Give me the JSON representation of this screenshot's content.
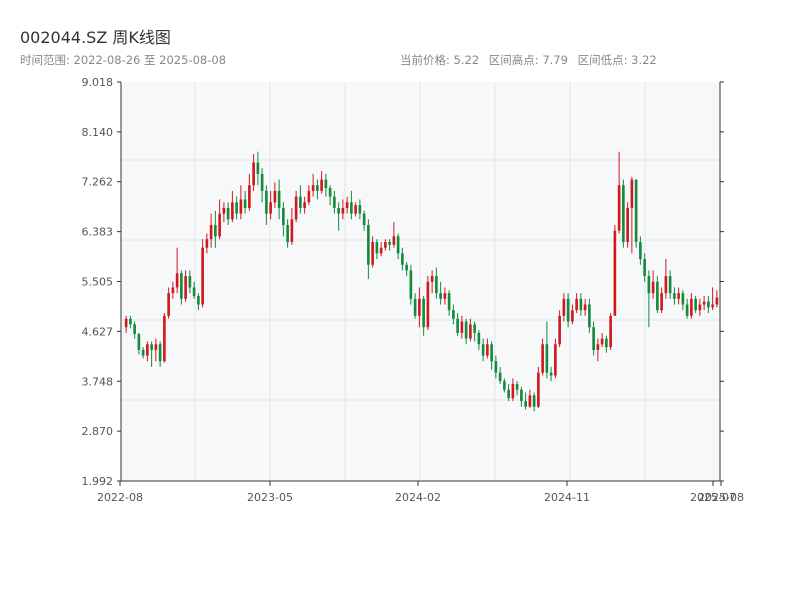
{
  "header": {
    "title": "002044.SZ 周K线图",
    "subtitle": "时间范围: 2022-08-26 至 2025-08-08",
    "current_price": "当前价格: 5.22",
    "range_high": "区间高点: 7.79",
    "range_low": "区间低点: 3.22"
  },
  "colors": {
    "up": "#d0191f",
    "down": "#138a3c",
    "plot_bg": "#f7f8fa",
    "grid": "#e3e5ea",
    "axis": "#333333"
  },
  "chart_data": {
    "type": "candlestick",
    "title": "002044.SZ 周K线图",
    "ylim": [
      1.992,
      9.018
    ],
    "y_ticks": [
      "9.018",
      "8.140",
      "7.262",
      "6.383",
      "5.505",
      "4.627",
      "3.748",
      "2.870",
      "1.992"
    ],
    "x_ticks": [
      "2022-08",
      "2023-05",
      "2024-02",
      "2024-11",
      "2025-07",
      "2025-08"
    ],
    "grid": true,
    "series": [
      {
        "values": [
          [
            4.7,
            4.85,
            4.6,
            4.9
          ],
          [
            4.85,
            4.75,
            4.68,
            4.9
          ],
          [
            4.75,
            4.58,
            4.5,
            4.8
          ],
          [
            4.58,
            4.3,
            4.22,
            4.6
          ],
          [
            4.3,
            4.2,
            4.15,
            4.35
          ],
          [
            4.2,
            4.4,
            4.1,
            4.45
          ],
          [
            4.4,
            4.3,
            4.0,
            4.45
          ],
          [
            4.3,
            4.4,
            4.1,
            4.5
          ],
          [
            4.4,
            4.1,
            4.0,
            4.45
          ],
          [
            4.1,
            4.9,
            4.08,
            4.95
          ],
          [
            4.9,
            5.3,
            4.85,
            5.4
          ],
          [
            5.3,
            5.4,
            5.2,
            5.5
          ],
          [
            5.4,
            5.65,
            5.3,
            6.1
          ],
          [
            5.65,
            5.2,
            5.1,
            5.7
          ],
          [
            5.2,
            5.6,
            5.15,
            5.7
          ],
          [
            5.6,
            5.4,
            5.3,
            5.7
          ],
          [
            5.4,
            5.25,
            5.2,
            5.5
          ],
          [
            5.25,
            5.1,
            5.0,
            5.3
          ],
          [
            5.1,
            6.1,
            5.05,
            6.25
          ],
          [
            6.1,
            6.25,
            6.0,
            6.35
          ],
          [
            6.25,
            6.5,
            6.1,
            6.7
          ],
          [
            6.5,
            6.3,
            6.1,
            6.75
          ],
          [
            6.3,
            6.7,
            6.25,
            6.95
          ],
          [
            6.7,
            6.8,
            6.55,
            6.9
          ],
          [
            6.8,
            6.6,
            6.5,
            6.9
          ],
          [
            6.6,
            6.9,
            6.55,
            7.1
          ],
          [
            6.9,
            6.7,
            6.6,
            7.0
          ],
          [
            6.7,
            6.95,
            6.6,
            7.2
          ],
          [
            6.95,
            6.8,
            6.7,
            7.1
          ],
          [
            6.8,
            7.2,
            6.75,
            7.4
          ],
          [
            7.2,
            7.6,
            7.1,
            7.75
          ],
          [
            7.6,
            7.4,
            7.2,
            7.79
          ],
          [
            7.4,
            7.1,
            6.9,
            7.5
          ],
          [
            7.1,
            6.7,
            6.5,
            7.2
          ],
          [
            6.7,
            6.9,
            6.6,
            7.1
          ],
          [
            6.9,
            7.1,
            6.8,
            7.25
          ],
          [
            7.1,
            6.8,
            6.6,
            7.3
          ],
          [
            6.8,
            6.5,
            6.3,
            6.9
          ],
          [
            6.5,
            6.2,
            6.1,
            6.6
          ],
          [
            6.2,
            6.6,
            6.15,
            6.8
          ],
          [
            6.6,
            7.0,
            6.55,
            7.1
          ],
          [
            7.0,
            6.8,
            6.7,
            7.2
          ],
          [
            6.8,
            6.9,
            6.7,
            7.0
          ],
          [
            6.9,
            7.1,
            6.85,
            7.2
          ],
          [
            7.1,
            7.2,
            7.0,
            7.4
          ],
          [
            7.2,
            7.1,
            6.95,
            7.3
          ],
          [
            7.1,
            7.3,
            7.05,
            7.45
          ],
          [
            7.3,
            7.15,
            7.0,
            7.4
          ],
          [
            7.15,
            7.0,
            6.85,
            7.2
          ],
          [
            7.0,
            6.8,
            6.7,
            7.1
          ],
          [
            6.8,
            6.7,
            6.4,
            6.9
          ],
          [
            6.7,
            6.8,
            6.6,
            6.95
          ],
          [
            6.8,
            6.9,
            6.7,
            7.0
          ],
          [
            6.9,
            6.7,
            6.6,
            7.1
          ],
          [
            6.7,
            6.85,
            6.65,
            6.9
          ],
          [
            6.85,
            6.7,
            6.6,
            6.95
          ],
          [
            6.7,
            6.5,
            6.4,
            6.75
          ],
          [
            6.5,
            5.8,
            5.55,
            6.6
          ],
          [
            5.8,
            6.2,
            5.75,
            6.3
          ],
          [
            6.2,
            6.0,
            5.9,
            6.25
          ],
          [
            6.0,
            6.1,
            5.95,
            6.2
          ],
          [
            6.1,
            6.2,
            6.05,
            6.25
          ],
          [
            6.2,
            6.15,
            6.05,
            6.25
          ],
          [
            6.15,
            6.3,
            6.1,
            6.55
          ],
          [
            6.3,
            6.0,
            5.9,
            6.35
          ],
          [
            6.0,
            5.8,
            5.7,
            6.1
          ],
          [
            5.8,
            5.7,
            5.6,
            5.85
          ],
          [
            5.7,
            5.2,
            5.1,
            5.8
          ],
          [
            5.2,
            4.9,
            4.85,
            5.3
          ],
          [
            4.9,
            5.2,
            4.7,
            5.4
          ],
          [
            5.2,
            4.7,
            4.55,
            5.25
          ],
          [
            4.7,
            5.5,
            4.65,
            5.6
          ],
          [
            5.5,
            5.6,
            5.3,
            5.7
          ],
          [
            5.6,
            5.3,
            5.2,
            5.75
          ],
          [
            5.3,
            5.2,
            5.1,
            5.5
          ],
          [
            5.2,
            5.3,
            5.1,
            5.4
          ],
          [
            5.3,
            5.0,
            4.9,
            5.35
          ],
          [
            5.0,
            4.85,
            4.75,
            5.1
          ],
          [
            4.85,
            4.6,
            4.55,
            4.95
          ],
          [
            4.6,
            4.8,
            4.5,
            4.9
          ],
          [
            4.8,
            4.5,
            4.4,
            4.85
          ],
          [
            4.5,
            4.75,
            4.45,
            4.85
          ],
          [
            4.75,
            4.6,
            4.45,
            4.8
          ],
          [
            4.6,
            4.4,
            4.3,
            4.65
          ],
          [
            4.4,
            4.2,
            4.1,
            4.5
          ],
          [
            4.2,
            4.4,
            4.15,
            4.5
          ],
          [
            4.4,
            4.1,
            3.95,
            4.45
          ],
          [
            4.1,
            3.9,
            3.8,
            4.2
          ],
          [
            3.9,
            3.75,
            3.7,
            4.0
          ],
          [
            3.75,
            3.6,
            3.55,
            3.8
          ],
          [
            3.6,
            3.45,
            3.4,
            3.7
          ],
          [
            3.45,
            3.7,
            3.4,
            3.8
          ],
          [
            3.7,
            3.6,
            3.5,
            3.75
          ],
          [
            3.6,
            3.4,
            3.3,
            3.65
          ],
          [
            3.4,
            3.3,
            3.25,
            3.55
          ],
          [
            3.3,
            3.5,
            3.28,
            3.6
          ],
          [
            3.5,
            3.3,
            3.22,
            3.55
          ],
          [
            3.3,
            3.9,
            3.28,
            4.0
          ],
          [
            3.9,
            4.4,
            3.85,
            4.5
          ],
          [
            4.4,
            3.9,
            3.8,
            4.8
          ],
          [
            3.9,
            3.85,
            3.75,
            4.0
          ],
          [
            3.85,
            4.4,
            3.8,
            4.5
          ],
          [
            4.4,
            4.9,
            4.35,
            5.0
          ],
          [
            4.9,
            5.2,
            4.8,
            5.3
          ],
          [
            5.2,
            4.8,
            4.7,
            5.3
          ],
          [
            4.8,
            5.0,
            4.75,
            5.1
          ],
          [
            5.0,
            5.2,
            4.95,
            5.3
          ],
          [
            5.2,
            5.0,
            4.9,
            5.3
          ],
          [
            5.0,
            5.1,
            4.9,
            5.2
          ],
          [
            5.1,
            4.7,
            4.6,
            5.2
          ],
          [
            4.7,
            4.3,
            4.2,
            4.8
          ],
          [
            4.3,
            4.4,
            4.1,
            4.5
          ],
          [
            4.4,
            4.5,
            4.35,
            4.6
          ],
          [
            4.5,
            4.35,
            4.25,
            4.55
          ],
          [
            4.35,
            4.9,
            4.3,
            4.95
          ],
          [
            4.9,
            6.4,
            5.0,
            6.5
          ],
          [
            6.4,
            7.2,
            6.35,
            7.79
          ],
          [
            7.2,
            6.2,
            6.1,
            7.3
          ],
          [
            6.2,
            6.8,
            6.1,
            6.9
          ],
          [
            6.8,
            7.3,
            6.0,
            7.35
          ],
          [
            7.3,
            6.2,
            6.1,
            7.3
          ],
          [
            6.2,
            5.9,
            5.8,
            6.3
          ],
          [
            5.9,
            5.6,
            5.5,
            6.0
          ],
          [
            5.6,
            5.3,
            4.7,
            5.7
          ],
          [
            5.3,
            5.5,
            5.2,
            5.7
          ],
          [
            5.5,
            5.0,
            4.95,
            5.6
          ],
          [
            5.0,
            5.3,
            4.95,
            5.4
          ],
          [
            5.3,
            5.6,
            5.2,
            5.9
          ],
          [
            5.6,
            5.3,
            5.2,
            5.7
          ],
          [
            5.3,
            5.2,
            5.1,
            5.4
          ],
          [
            5.2,
            5.3,
            5.1,
            5.4
          ],
          [
            5.3,
            5.1,
            5.0,
            5.35
          ],
          [
            5.1,
            4.9,
            4.85,
            5.2
          ],
          [
            4.9,
            5.2,
            4.85,
            5.3
          ],
          [
            5.2,
            5.0,
            4.95,
            5.25
          ],
          [
            5.0,
            5.1,
            4.9,
            5.2
          ],
          [
            5.1,
            5.15,
            5.0,
            5.25
          ],
          [
            5.15,
            5.05,
            4.95,
            5.25
          ],
          [
            5.05,
            5.1,
            5.0,
            5.4
          ],
          [
            5.1,
            5.22,
            5.05,
            5.35
          ]
        ]
      }
    ]
  }
}
